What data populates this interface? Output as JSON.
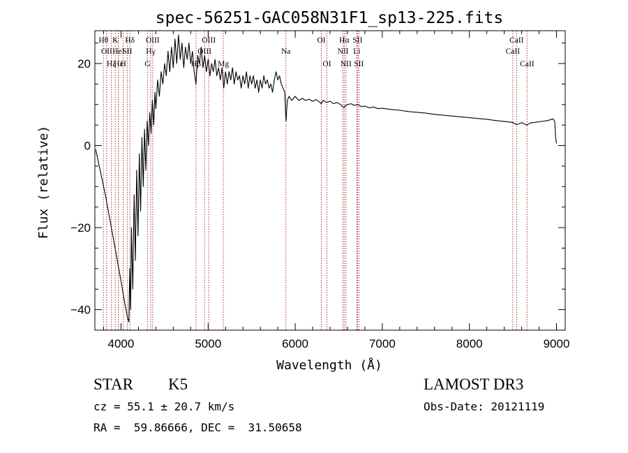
{
  "chart_data": {
    "type": "line",
    "title": "spec-56251-GAC058N31F1_sp13-225.fits",
    "xlabel": "Wavelength (Å)",
    "ylabel": "Flux (relative)",
    "xlim": [
      3700,
      9100
    ],
    "ylim": [
      -45,
      28
    ],
    "xticks": [
      4000,
      5000,
      6000,
      7000,
      8000,
      9000
    ],
    "yticks": [
      -40,
      -20,
      0,
      20
    ],
    "grid": false,
    "series": [
      {
        "color": "#000000",
        "points": [
          [
            3710,
            -1
          ],
          [
            3760,
            -6
          ],
          [
            3820,
            -12
          ],
          [
            3880,
            -19
          ],
          [
            3940,
            -26
          ],
          [
            4000,
            -33
          ],
          [
            4040,
            -38
          ],
          [
            4075,
            -42
          ],
          [
            4090,
            -43
          ],
          [
            4100,
            -30
          ],
          [
            4110,
            -40
          ],
          [
            4120,
            -20
          ],
          [
            4135,
            -35
          ],
          [
            4150,
            -12
          ],
          [
            4165,
            -28
          ],
          [
            4180,
            -6
          ],
          [
            4195,
            -22
          ],
          [
            4210,
            -2
          ],
          [
            4225,
            -16
          ],
          [
            4240,
            2
          ],
          [
            4255,
            -10
          ],
          [
            4270,
            4
          ],
          [
            4285,
            -6
          ],
          [
            4300,
            6
          ],
          [
            4315,
            0
          ],
          [
            4330,
            8
          ],
          [
            4345,
            3
          ],
          [
            4360,
            11
          ],
          [
            4375,
            5
          ],
          [
            4390,
            13
          ],
          [
            4400,
            9
          ],
          [
            4420,
            16
          ],
          [
            4440,
            12
          ],
          [
            4460,
            18
          ],
          [
            4480,
            15
          ],
          [
            4500,
            20
          ],
          [
            4520,
            17
          ],
          [
            4540,
            23
          ],
          [
            4560,
            18
          ],
          [
            4580,
            24
          ],
          [
            4600,
            19
          ],
          [
            4620,
            26
          ],
          [
            4640,
            20
          ],
          [
            4660,
            27
          ],
          [
            4680,
            21
          ],
          [
            4700,
            25
          ],
          [
            4720,
            19
          ],
          [
            4740,
            24
          ],
          [
            4760,
            21
          ],
          [
            4780,
            25
          ],
          [
            4800,
            20
          ],
          [
            4820,
            23
          ],
          [
            4840,
            18
          ],
          [
            4860,
            15
          ],
          [
            4880,
            22
          ],
          [
            4900,
            20
          ],
          [
            4920,
            24
          ],
          [
            4940,
            19
          ],
          [
            4960,
            22
          ],
          [
            4980,
            18
          ],
          [
            5000,
            21
          ],
          [
            5020,
            17
          ],
          [
            5040,
            20
          ],
          [
            5060,
            18
          ],
          [
            5080,
            21
          ],
          [
            5100,
            17
          ],
          [
            5120,
            19
          ],
          [
            5140,
            16
          ],
          [
            5160,
            19
          ],
          [
            5180,
            14
          ],
          [
            5200,
            18
          ],
          [
            5220,
            15
          ],
          [
            5240,
            18
          ],
          [
            5260,
            16
          ],
          [
            5280,
            19
          ],
          [
            5300,
            15
          ],
          [
            5320,
            18
          ],
          [
            5340,
            16
          ],
          [
            5360,
            17
          ],
          [
            5380,
            14
          ],
          [
            5400,
            17
          ],
          [
            5420,
            15
          ],
          [
            5440,
            18
          ],
          [
            5460,
            14
          ],
          [
            5480,
            17
          ],
          [
            5500,
            15
          ],
          [
            5520,
            17
          ],
          [
            5540,
            14
          ],
          [
            5560,
            16
          ],
          [
            5580,
            13
          ],
          [
            5600,
            16
          ],
          [
            5620,
            14
          ],
          [
            5640,
            17
          ],
          [
            5660,
            15
          ],
          [
            5680,
            16
          ],
          [
            5700,
            14
          ],
          [
            5720,
            15
          ],
          [
            5740,
            13
          ],
          [
            5760,
            16
          ],
          [
            5780,
            18
          ],
          [
            5800,
            16
          ],
          [
            5820,
            17
          ],
          [
            5840,
            15
          ],
          [
            5860,
            14
          ],
          [
            5880,
            13
          ],
          [
            5890,
            8
          ],
          [
            5895,
            6
          ],
          [
            5900,
            8
          ],
          [
            5910,
            11
          ],
          [
            5930,
            12
          ],
          [
            5960,
            11
          ],
          [
            6000,
            12
          ],
          [
            6040,
            11
          ],
          [
            6080,
            11.5
          ],
          [
            6120,
            11
          ],
          [
            6160,
            11.3
          ],
          [
            6200,
            10.8
          ],
          [
            6240,
            11.2
          ],
          [
            6280,
            10.6
          ],
          [
            6300,
            10.2
          ],
          [
            6320,
            11
          ],
          [
            6360,
            10.5
          ],
          [
            6400,
            10.8
          ],
          [
            6440,
            10.2
          ],
          [
            6480,
            10.5
          ],
          [
            6520,
            10
          ],
          [
            6560,
            9.2
          ],
          [
            6570,
            9.6
          ],
          [
            6600,
            10
          ],
          [
            6640,
            10.2
          ],
          [
            6680,
            9.8
          ],
          [
            6720,
            10
          ],
          [
            6760,
            9.5
          ],
          [
            6800,
            9.6
          ],
          [
            6850,
            9.2
          ],
          [
            6900,
            9.4
          ],
          [
            6950,
            9
          ],
          [
            7000,
            9.1
          ],
          [
            7100,
            8.8
          ],
          [
            7200,
            8.6
          ],
          [
            7300,
            8.3
          ],
          [
            7400,
            8.1
          ],
          [
            7500,
            7.9
          ],
          [
            7600,
            7.6
          ],
          [
            7700,
            7.4
          ],
          [
            7800,
            7.2
          ],
          [
            7900,
            7
          ],
          [
            8000,
            6.8
          ],
          [
            8100,
            6.6
          ],
          [
            8200,
            6.4
          ],
          [
            8300,
            6.1
          ],
          [
            8400,
            5.9
          ],
          [
            8500,
            5.6
          ],
          [
            8540,
            5.1
          ],
          [
            8600,
            5.6
          ],
          [
            8660,
            5
          ],
          [
            8700,
            5.5
          ],
          [
            8800,
            5.8
          ],
          [
            8900,
            6.1
          ],
          [
            8960,
            6.5
          ],
          [
            8980,
            5.9
          ],
          [
            8990,
            2
          ],
          [
            9000,
            0.5
          ]
        ]
      }
    ],
    "lines": [
      {
        "x": 3798,
        "label": "Hθ",
        "row": 1
      },
      {
        "x": 3835,
        "label": "OII",
        "row": 2
      },
      {
        "x": 3889,
        "label": "Hζ",
        "row": 3
      },
      {
        "x": 3934,
        "label": "K",
        "row": 1
      },
      {
        "x": 3970,
        "label": "HeI",
        "row": 2
      },
      {
        "x": 3970,
        "label": "Hε",
        "row": 3
      },
      {
        "x": 4026,
        "label": "H",
        "row": 3
      },
      {
        "x": 4102,
        "label": "Hδ",
        "row": 1
      },
      {
        "x": 4072,
        "label": "SII",
        "row": 2
      },
      {
        "x": 4304,
        "label": "G",
        "row": 3
      },
      {
        "x": 4341,
        "label": "Hγ",
        "row": 2
      },
      {
        "x": 4363,
        "label": "OIII",
        "row": 1
      },
      {
        "x": 4861,
        "label": "Hβ",
        "row": 3
      },
      {
        "x": 4959,
        "label": "OIII",
        "row": 2
      },
      {
        "x": 5007,
        "label": "OIII",
        "row": 1
      },
      {
        "x": 5175,
        "label": "Mg",
        "row": 3
      },
      {
        "x": 5893,
        "label": "Na",
        "row": 2
      },
      {
        "x": 6300,
        "label": "OI",
        "row": 1
      },
      {
        "x": 6364,
        "label": "OI",
        "row": 3
      },
      {
        "x": 6548,
        "label": "NII",
        "row": 2
      },
      {
        "x": 6563,
        "label": "Hα",
        "row": 1
      },
      {
        "x": 6583,
        "label": "NII",
        "row": 3
      },
      {
        "x": 6707,
        "label": "Li",
        "row": 2
      },
      {
        "x": 6716,
        "label": "SII",
        "row": 1
      },
      {
        "x": 6731,
        "label": "SII",
        "row": 3
      },
      {
        "x": 8498,
        "label": "CaII",
        "row": 2
      },
      {
        "x": 8542,
        "label": "CaII",
        "row": 1
      },
      {
        "x": 8662,
        "label": "CaII",
        "row": 3
      }
    ]
  },
  "footer": {
    "class_label": "STAR",
    "subclass_label": "K5",
    "survey_label": "LAMOST DR3",
    "cz_text": "cz = 55.1 ± 20.7 km/s",
    "obs_date_text": "Obs-Date: 20121119",
    "radec_text": "RA =  59.86666, DEC =  31.50658"
  }
}
